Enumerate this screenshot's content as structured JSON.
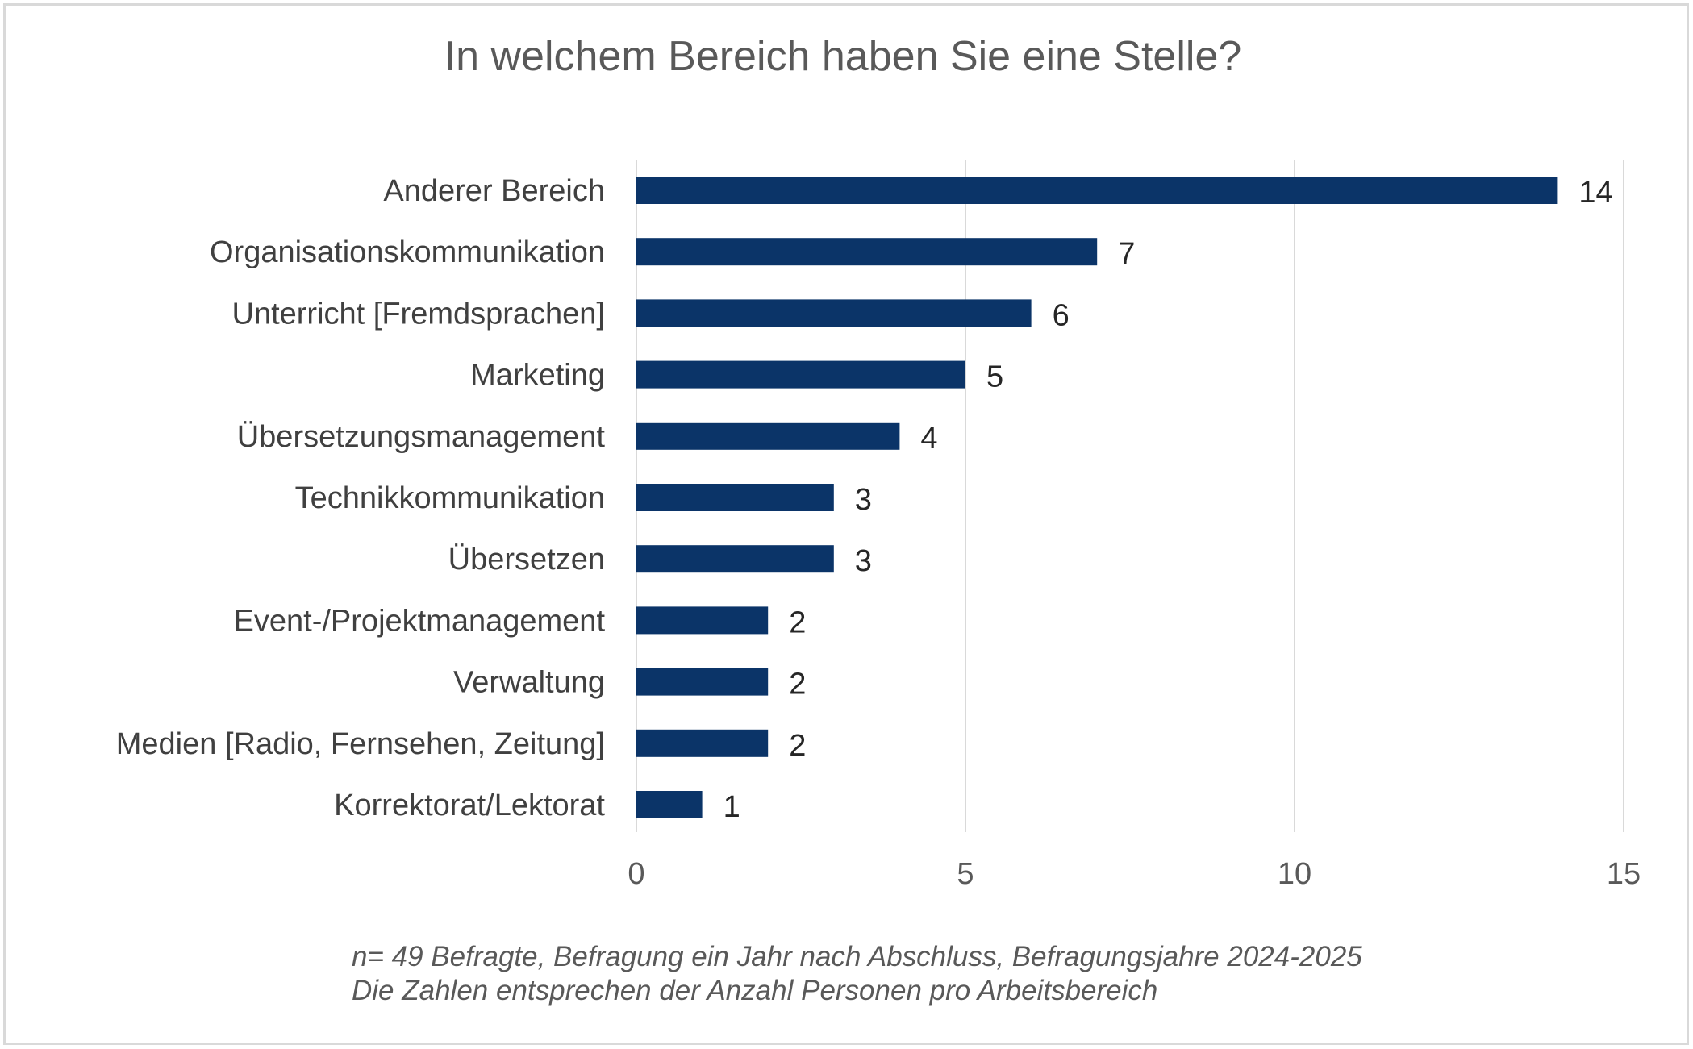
{
  "chart_data": {
    "type": "bar",
    "orientation": "horizontal",
    "title": "In welchem Bereich haben Sie eine Stelle?",
    "categories": [
      "Anderer Bereich",
      "Organisationskommunikation",
      "Unterricht [Fremdsprachen]",
      "Marketing",
      "Übersetzungsmanagement",
      "Technikkommunikation",
      "Übersetzen",
      "Event-/Projektmanagement",
      "Verwaltung",
      "Medien [Radio, Fernsehen, Zeitung]",
      "Korrektorat/Lektorat"
    ],
    "values": [
      14,
      7,
      6,
      5,
      4,
      3,
      3,
      2,
      2,
      2,
      1
    ],
    "xlim": [
      0,
      15
    ],
    "xticks": [
      "0",
      "5",
      "10",
      "15"
    ],
    "grid": true,
    "data_labels": true,
    "bar_color": "#0b3468"
  },
  "footnote": {
    "line1": "n= 49 Befragte, Befragung ein Jahr nach Abschluss, Befragungsjahre 2024-2025",
    "line2": "Die Zahlen entsprechen der Anzahl Personen pro Arbeitsbereich"
  }
}
